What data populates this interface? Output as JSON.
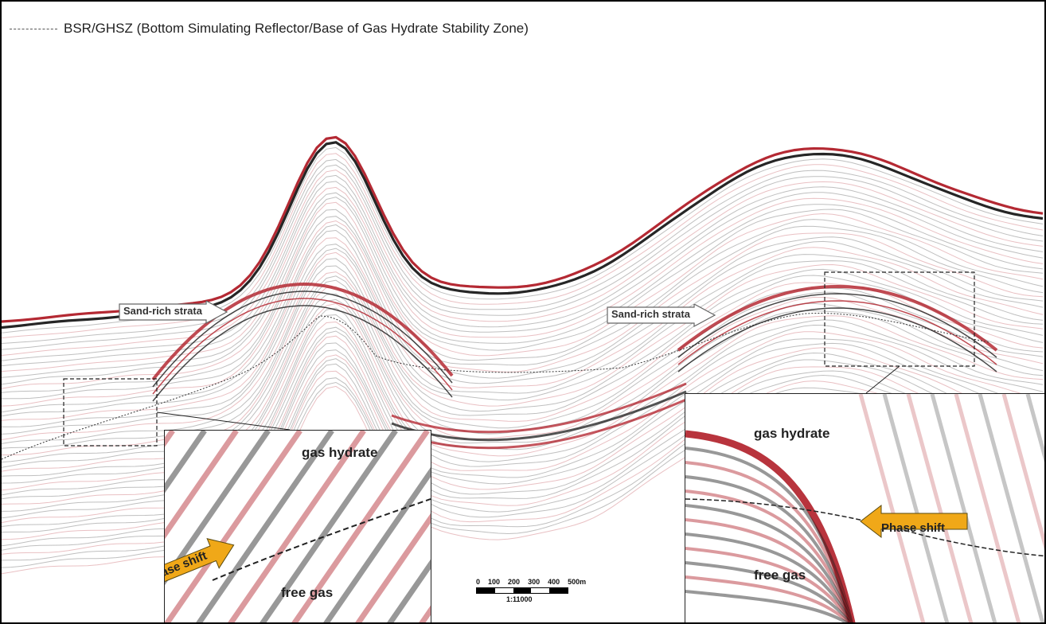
{
  "legend": {
    "text": "BSR/GHSZ (Bottom Simulating Reflector/Base of Gas Hydrate Stability Zone)"
  },
  "annotations": {
    "sand_left": "Sand-rich strata",
    "sand_right": "Sand-rich strata"
  },
  "inset_left": {
    "upper": "gas hydrate",
    "lower": "free gas",
    "arrow": "Phase shift"
  },
  "inset_right": {
    "upper": "gas hydrate",
    "lower": "free gas",
    "arrow": "Phase shift"
  },
  "scale_bar": {
    "ticks": [
      "0",
      "100",
      "200",
      "300",
      "400",
      "500m"
    ],
    "ratio": "1:11000"
  },
  "colors": {
    "reflector_red": "#b01e28",
    "reflector_black": "#1a1a1a",
    "arrow_fill": "#f0a818"
  }
}
